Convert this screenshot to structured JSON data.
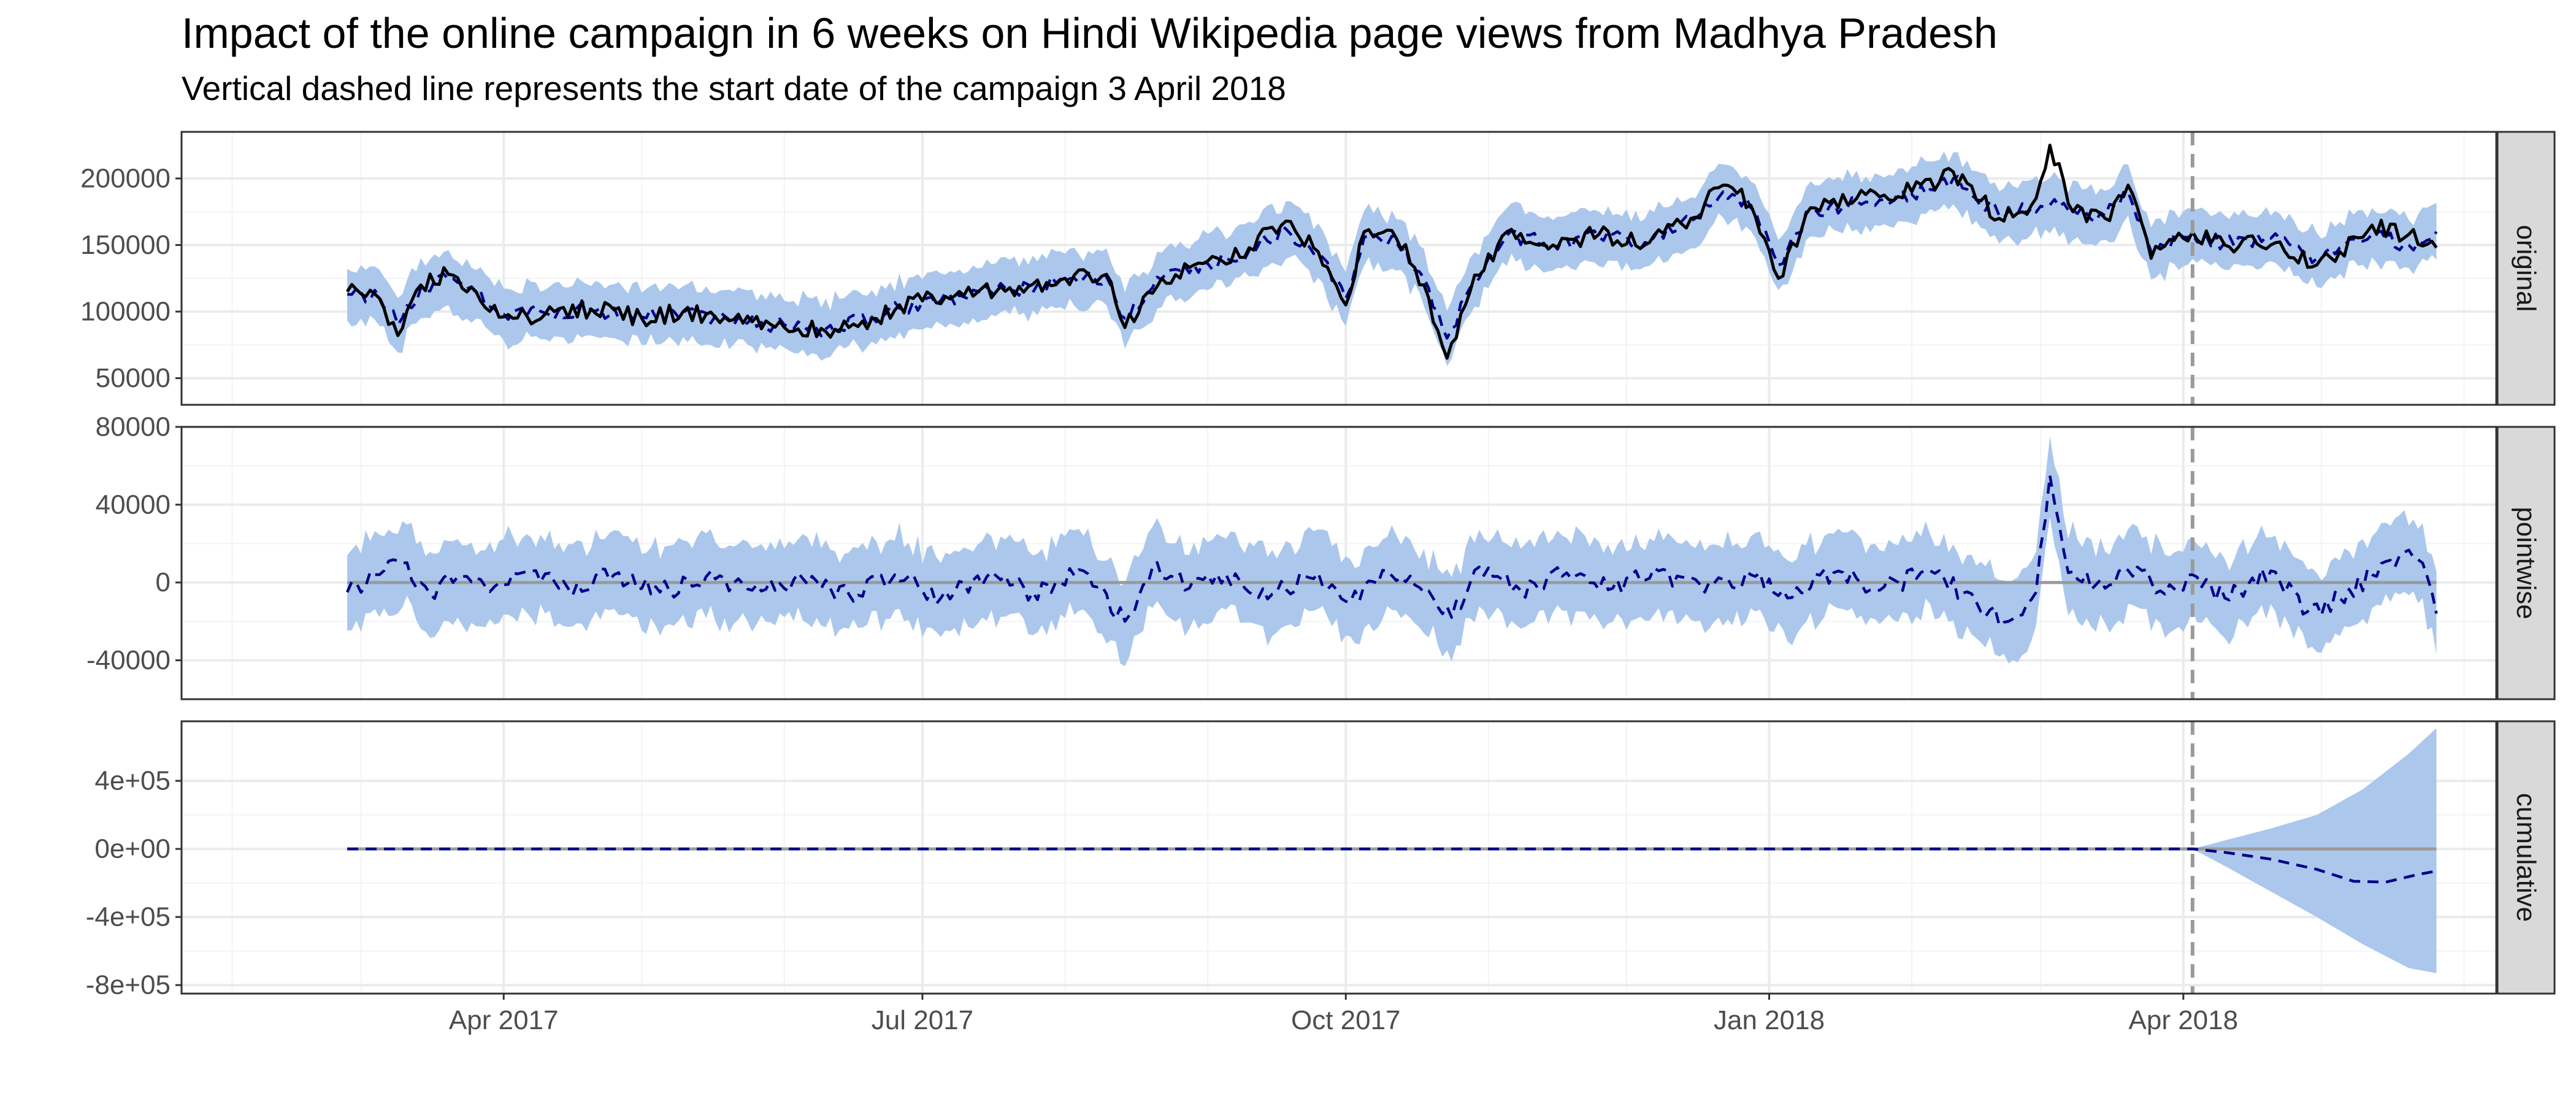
{
  "title": "Impact of the online campaign in 6 weeks on Hindi Wikipedia page views from Madhya Pradesh",
  "subtitle": "Vertical dashed line represents the start date of the campaign 3 April 2018",
  "colors": {
    "ribbon": "#abc7ec",
    "prediction": "#00008b",
    "actual": "#000000",
    "zero_line": "#9a9a9a",
    "vline": "#9a9a9a",
    "strip": "#d9d9d9",
    "grid": "#ebebeb"
  },
  "chart_data": {
    "type": "line",
    "x_axis": {
      "range": [
        "2017-01-21",
        "2018-06-08"
      ],
      "ticks": [
        "2017-04-01",
        "2017-07-01",
        "2017-10-01",
        "2018-01-01",
        "2018-04-01"
      ],
      "tick_labels": [
        "Apr 2017",
        "Jul 2017",
        "Oct 2017",
        "Jan 2018",
        "Apr 2018"
      ]
    },
    "campaign_start": "2018-04-03",
    "series_start": "2017-02-26",
    "series_end": "2018-05-26",
    "panels": [
      {
        "label": "original",
        "ylim": [
          30000,
          235000
        ],
        "yticks": [
          50000,
          100000,
          150000,
          200000
        ],
        "ytick_labels": [
          "50000",
          "100000",
          "150000",
          "200000"
        ],
        "actual": [
          [
            "2017-02-26",
            115000
          ],
          [
            "2017-03-05",
            110000
          ],
          [
            "2017-03-09",
            82000
          ],
          [
            "2017-03-14",
            120000
          ],
          [
            "2017-03-20",
            128000
          ],
          [
            "2017-03-26",
            115000
          ],
          [
            "2017-04-01",
            96000
          ],
          [
            "2017-04-10",
            98000
          ],
          [
            "2017-04-20",
            102000
          ],
          [
            "2017-05-01",
            95000
          ],
          [
            "2017-05-10",
            100000
          ],
          [
            "2017-05-20",
            93000
          ],
          [
            "2017-06-01",
            88000
          ],
          [
            "2017-06-10",
            85000
          ],
          [
            "2017-06-20",
            95000
          ],
          [
            "2017-07-01",
            108000
          ],
          [
            "2017-07-10",
            112000
          ],
          [
            "2017-07-20",
            118000
          ],
          [
            "2017-08-01",
            125000
          ],
          [
            "2017-08-10",
            128000
          ],
          [
            "2017-08-14",
            88000
          ],
          [
            "2017-08-22",
            125000
          ],
          [
            "2017-09-01",
            138000
          ],
          [
            "2017-09-10",
            148000
          ],
          [
            "2017-09-18",
            168000
          ],
          [
            "2017-09-25",
            145000
          ],
          [
            "2017-10-01",
            105000
          ],
          [
            "2017-10-05",
            160000
          ],
          [
            "2017-10-12",
            155000
          ],
          [
            "2017-10-18",
            120000
          ],
          [
            "2017-10-23",
            65000
          ],
          [
            "2017-10-28",
            115000
          ],
          [
            "2017-11-05",
            160000
          ],
          [
            "2017-11-15",
            150000
          ],
          [
            "2017-11-25",
            158000
          ],
          [
            "2017-12-05",
            150000
          ],
          [
            "2017-12-15",
            170000
          ],
          [
            "2017-12-22",
            195000
          ],
          [
            "2017-12-28",
            180000
          ],
          [
            "2018-01-03",
            125000
          ],
          [
            "2018-01-10",
            178000
          ],
          [
            "2018-01-20",
            185000
          ],
          [
            "2018-02-01",
            190000
          ],
          [
            "2018-02-10",
            205000
          ],
          [
            "2018-02-20",
            170000
          ],
          [
            "2018-02-27",
            180000
          ],
          [
            "2018-03-03",
            225000
          ],
          [
            "2018-03-08",
            175000
          ],
          [
            "2018-03-15",
            170000
          ],
          [
            "2018-03-20",
            195000
          ],
          [
            "2018-03-25",
            140000
          ],
          [
            "2018-04-01",
            155000
          ],
          [
            "2018-04-03",
            160000
          ],
          [
            "2018-04-10",
            150000
          ],
          [
            "2018-04-20",
            150000
          ],
          [
            "2018-04-30",
            135000
          ],
          [
            "2018-05-05",
            145000
          ],
          [
            "2018-05-12",
            165000
          ],
          [
            "2018-05-20",
            158000
          ],
          [
            "2018-05-26",
            148000
          ]
        ],
        "predicted": [
          [
            "2017-02-26",
            113000
          ],
          [
            "2017-03-05",
            111000
          ],
          [
            "2017-03-09",
            90000
          ],
          [
            "2017-03-14",
            118000
          ],
          [
            "2017-03-20",
            124000
          ],
          [
            "2017-03-26",
            114000
          ],
          [
            "2017-04-01",
            98000
          ],
          [
            "2017-04-10",
            99000
          ],
          [
            "2017-04-20",
            101000
          ],
          [
            "2017-05-01",
            96000
          ],
          [
            "2017-05-10",
            99000
          ],
          [
            "2017-05-20",
            94000
          ],
          [
            "2017-06-01",
            90000
          ],
          [
            "2017-06-10",
            87000
          ],
          [
            "2017-06-20",
            96000
          ],
          [
            "2017-07-01",
            107000
          ],
          [
            "2017-07-10",
            111000
          ],
          [
            "2017-07-20",
            117000
          ],
          [
            "2017-08-01",
            123000
          ],
          [
            "2017-08-10",
            126000
          ],
          [
            "2017-08-14",
            95000
          ],
          [
            "2017-08-22",
            124000
          ],
          [
            "2017-09-01",
            136000
          ],
          [
            "2017-09-10",
            146000
          ],
          [
            "2017-09-18",
            162000
          ],
          [
            "2017-09-25",
            144000
          ],
          [
            "2017-10-01",
            110000
          ],
          [
            "2017-10-05",
            156000
          ],
          [
            "2017-10-12",
            152000
          ],
          [
            "2017-10-18",
            125000
          ],
          [
            "2017-10-23",
            80000
          ],
          [
            "2017-10-28",
            118000
          ],
          [
            "2017-11-05",
            157000
          ],
          [
            "2017-11-15",
            151000
          ],
          [
            "2017-11-25",
            156000
          ],
          [
            "2017-12-05",
            152000
          ],
          [
            "2017-12-15",
            168000
          ],
          [
            "2017-12-22",
            190000
          ],
          [
            "2017-12-28",
            178000
          ],
          [
            "2018-01-03",
            135000
          ],
          [
            "2018-01-10",
            175000
          ],
          [
            "2018-01-20",
            183000
          ],
          [
            "2018-02-01",
            188000
          ],
          [
            "2018-02-10",
            200000
          ],
          [
            "2018-02-20",
            172000
          ],
          [
            "2018-02-27",
            178000
          ],
          [
            "2018-03-03",
            180000
          ],
          [
            "2018-03-08",
            176000
          ],
          [
            "2018-03-15",
            172000
          ],
          [
            "2018-03-20",
            190000
          ],
          [
            "2018-03-25",
            145000
          ],
          [
            "2018-04-01",
            156000
          ],
          [
            "2018-04-03",
            158000
          ],
          [
            "2018-04-10",
            152000
          ],
          [
            "2018-04-20",
            155000
          ],
          [
            "2018-04-30",
            140000
          ],
          [
            "2018-05-05",
            148000
          ],
          [
            "2018-05-12",
            158000
          ],
          [
            "2018-05-20",
            150000
          ],
          [
            "2018-05-26",
            160000
          ]
        ],
        "band_halfwidth": 20000
      },
      {
        "label": "pointwise",
        "ylim": [
          -60000,
          80000
        ],
        "yticks": [
          -40000,
          0,
          40000,
          80000
        ],
        "ytick_labels": [
          "-40000",
          "0",
          "40000",
          "80000"
        ],
        "predicted": [
          [
            "2017-02-26",
            -5000
          ],
          [
            "2017-03-05",
            4000
          ],
          [
            "2017-03-10",
            10000
          ],
          [
            "2017-03-16",
            -6000
          ],
          [
            "2017-03-22",
            3000
          ],
          [
            "2017-03-28",
            -2000
          ],
          [
            "2017-04-05",
            5000
          ],
          [
            "2017-04-15",
            -3000
          ],
          [
            "2017-04-25",
            4000
          ],
          [
            "2017-05-05",
            -5000
          ],
          [
            "2017-05-15",
            3000
          ],
          [
            "2017-05-25",
            -4000
          ],
          [
            "2017-06-05",
            2000
          ],
          [
            "2017-06-15",
            -6000
          ],
          [
            "2017-06-25",
            4000
          ],
          [
            "2017-07-05",
            -8000
          ],
          [
            "2017-07-15",
            3000
          ],
          [
            "2017-07-25",
            -5000
          ],
          [
            "2017-08-05",
            6000
          ],
          [
            "2017-08-14",
            -20000
          ],
          [
            "2017-08-20",
            8000
          ],
          [
            "2017-08-28",
            -3000
          ],
          [
            "2017-09-05",
            4000
          ],
          [
            "2017-09-15",
            -6000
          ],
          [
            "2017-09-25",
            5000
          ],
          [
            "2017-10-02",
            -10000
          ],
          [
            "2017-10-10",
            6000
          ],
          [
            "2017-10-18",
            -5000
          ],
          [
            "2017-10-24",
            -18000
          ],
          [
            "2017-10-30",
            8000
          ],
          [
            "2017-11-08",
            -4000
          ],
          [
            "2017-11-18",
            5000
          ],
          [
            "2017-11-28",
            -3000
          ],
          [
            "2017-12-08",
            6000
          ],
          [
            "2017-12-18",
            -5000
          ],
          [
            "2017-12-28",
            4000
          ],
          [
            "2018-01-05",
            -8000
          ],
          [
            "2018-01-15",
            5000
          ],
          [
            "2018-01-25",
            -4000
          ],
          [
            "2018-02-05",
            6000
          ],
          [
            "2018-02-15",
            -10000
          ],
          [
            "2018-02-22",
            -20000
          ],
          [
            "2018-02-28",
            -5000
          ],
          [
            "2018-03-03",
            55000
          ],
          [
            "2018-03-07",
            5000
          ],
          [
            "2018-03-15",
            -3000
          ],
          [
            "2018-03-22",
            8000
          ],
          [
            "2018-03-28",
            -6000
          ],
          [
            "2018-04-03",
            4000
          ],
          [
            "2018-04-10",
            -8000
          ],
          [
            "2018-04-20",
            6000
          ],
          [
            "2018-04-28",
            -15000
          ],
          [
            "2018-05-05",
            -8000
          ],
          [
            "2018-05-12",
            4000
          ],
          [
            "2018-05-18",
            14000
          ],
          [
            "2018-05-23",
            10000
          ],
          [
            "2018-05-26",
            -16000
          ]
        ],
        "band_halfwidth": 20000
      },
      {
        "label": "cumulative",
        "ylim": [
          -850000,
          750000
        ],
        "yticks": [
          -800000,
          -400000,
          0,
          400000
        ],
        "ytick_labels": [
          "-8e+05",
          "-4e+05",
          "0e+00",
          "4e+05"
        ],
        "predicted": [
          [
            "2017-02-26",
            0
          ],
          [
            "2018-04-03",
            0
          ],
          [
            "2018-04-10",
            -20000
          ],
          [
            "2018-04-20",
            -60000
          ],
          [
            "2018-04-30",
            -120000
          ],
          [
            "2018-05-08",
            -190000
          ],
          [
            "2018-05-15",
            -195000
          ],
          [
            "2018-05-22",
            -150000
          ],
          [
            "2018-05-26",
            -130000
          ]
        ],
        "band": [
          [
            "2018-04-03",
            0,
            0
          ],
          [
            "2018-04-10",
            50000,
            -100000
          ],
          [
            "2018-04-20",
            120000,
            -250000
          ],
          [
            "2018-04-30",
            200000,
            -400000
          ],
          [
            "2018-05-10",
            350000,
            -560000
          ],
          [
            "2018-05-20",
            560000,
            -700000
          ],
          [
            "2018-05-26",
            710000,
            -730000
          ]
        ]
      }
    ]
  }
}
